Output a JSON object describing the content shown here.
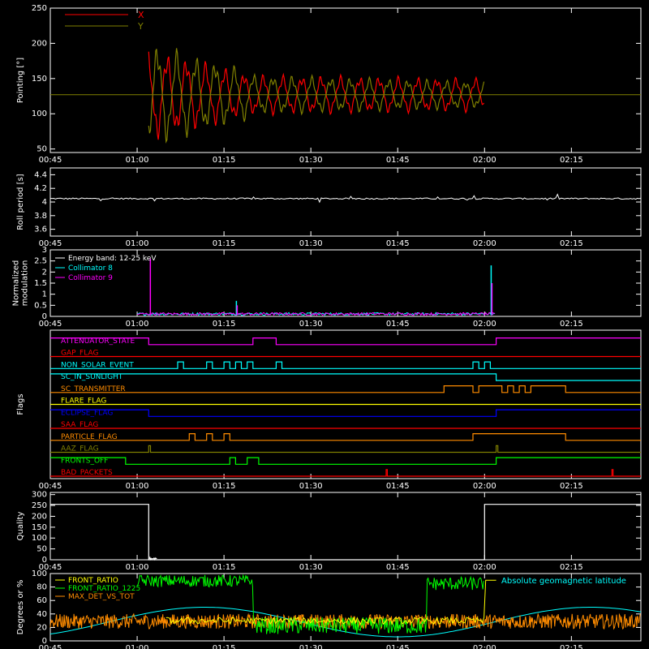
{
  "time_ticks": [
    "00:45",
    "01:00",
    "01:15",
    "01:30",
    "01:45",
    "02:00",
    "02:15"
  ],
  "colors": {
    "background": "#000000",
    "axes": "#ffffff",
    "red": "#ff0000",
    "olive": "#808000",
    "cyan": "#00ffff",
    "magenta": "#ff00ff",
    "green": "#00ff00",
    "yellow": "#ffff00",
    "orange": "#ff8c00",
    "blue": "#0000ff"
  },
  "chart_data": [
    {
      "type": "line",
      "ylabel": "Pointing [°]",
      "yticks": [
        50,
        100,
        150,
        200,
        250
      ],
      "ylim": [
        45,
        250
      ],
      "xlim": [
        "00:45",
        "02:27"
      ],
      "series": [
        {
          "name": "X",
          "color": "#ff0000",
          "center": 127,
          "segments": [
            {
              "t0": "01:02",
              "t1": "01:20",
              "amp_start": 70,
              "amp_end": 30
            },
            {
              "t0": "01:20",
              "t1": "02:00",
              "amp_start": 30,
              "amp_end": 25
            }
          ]
        },
        {
          "name": "Y",
          "color": "#808000",
          "center": 127,
          "segments": [
            {
              "t0": "01:02",
              "t1": "01:20",
              "amp_start": 78,
              "amp_end": 35
            },
            {
              "t0": "01:20",
              "t1": "02:00",
              "amp_start": 30,
              "amp_end": 20
            }
          ]
        }
      ]
    },
    {
      "type": "line",
      "ylabel": "Roll period [s]",
      "yticks": [
        3.6,
        3.8,
        4.0,
        4.2,
        4.4
      ],
      "ylim": [
        3.5,
        4.5
      ],
      "baseline": 4.05,
      "series": [
        {
          "color": "#ffffff",
          "values_note": "flat ~4.05"
        }
      ]
    },
    {
      "type": "line",
      "ylabel": "Normalized modulation",
      "yticks": [
        0.0,
        0.5,
        1.0,
        1.5,
        2.0,
        2.5,
        3.0
      ],
      "ylim": [
        0,
        3.0
      ],
      "series": [
        {
          "name": "Energy band: 12-25 keV",
          "color": "#ffffff"
        },
        {
          "name": "Collimator 8",
          "color": "#00ffff",
          "spikes": [
            [
              "01:17",
              0.7
            ],
            [
              "02:01",
              2.3
            ]
          ]
        },
        {
          "name": "Collimator 9",
          "color": "#ff00ff",
          "spikes": [
            [
              "01:02",
              2.6
            ],
            [
              "01:17",
              0.5
            ],
            [
              "02:01",
              1.5
            ]
          ]
        }
      ]
    },
    {
      "type": "step",
      "ylabel": "Flags",
      "flags": [
        {
          "name": "ATTENUATOR_STATE",
          "color": "#ff00ff",
          "transitions": [
            [
              "00:45",
              1
            ],
            [
              "01:02",
              0
            ],
            [
              "01:20",
              1
            ],
            [
              "01:24",
              0
            ],
            [
              "02:02",
              1
            ],
            [
              "02:27",
              1
            ]
          ]
        },
        {
          "name": "GAP_FLAG",
          "color": "#ff0000",
          "transitions": [
            [
              "00:45",
              0
            ],
            [
              "02:27",
              0
            ]
          ]
        },
        {
          "name": "NON_SOLAR_EVENT",
          "color": "#00ffff",
          "transitions": [
            [
              "00:45",
              0
            ],
            [
              "01:07",
              1
            ],
            [
              "01:08",
              0
            ],
            [
              "01:12",
              1
            ],
            [
              "01:13",
              0
            ],
            [
              "01:15",
              1
            ],
            [
              "01:16",
              0
            ],
            [
              "01:17",
              1
            ],
            [
              "01:18",
              0
            ],
            [
              "01:19",
              1
            ],
            [
              "01:20",
              0
            ],
            [
              "01:24",
              1
            ],
            [
              "01:25",
              0
            ],
            [
              "01:58",
              1
            ],
            [
              "01:59",
              0
            ],
            [
              "02:00",
              1
            ],
            [
              "02:01",
              0
            ],
            [
              "02:27",
              0
            ]
          ]
        },
        {
          "name": "SC_IN_SUNLIGHT",
          "color": "#00ffff",
          "transitions": [
            [
              "00:45",
              1
            ],
            [
              "02:02",
              0
            ],
            [
              "02:27",
              0
            ]
          ]
        },
        {
          "name": "SC_TRANSMITTER",
          "color": "#ff8c00",
          "transitions": [
            [
              "00:45",
              0
            ],
            [
              "01:53",
              1
            ],
            [
              "01:58",
              0
            ],
            [
              "01:59",
              1
            ],
            [
              "02:03",
              0
            ],
            [
              "02:04",
              1
            ],
            [
              "02:05",
              0
            ],
            [
              "02:06",
              1
            ],
            [
              "02:07",
              0
            ],
            [
              "02:08",
              1
            ],
            [
              "02:14",
              0
            ],
            [
              "02:27",
              0
            ]
          ]
        },
        {
          "name": "FLARE_FLAG",
          "color": "#ffff00",
          "transitions": [
            [
              "00:45",
              0
            ],
            [
              "02:27",
              0
            ]
          ]
        },
        {
          "name": "ECLIPSE_FLAG",
          "color": "#0000ff",
          "transitions": [
            [
              "00:45",
              1
            ],
            [
              "01:02",
              0
            ],
            [
              "02:02",
              1
            ],
            [
              "02:27",
              1
            ]
          ]
        },
        {
          "name": "SAA_FLAG",
          "color": "#ff0000",
          "transitions": [
            [
              "00:45",
              0
            ],
            [
              "02:27",
              0
            ]
          ]
        },
        {
          "name": "PARTICLE_FLAG",
          "color": "#ff8c00",
          "transitions": [
            [
              "00:45",
              0
            ],
            [
              "01:09",
              1
            ],
            [
              "01:10",
              0
            ],
            [
              "01:12",
              1
            ],
            [
              "01:13",
              0
            ],
            [
              "01:15",
              1
            ],
            [
              "01:16",
              0
            ],
            [
              "01:58",
              1
            ],
            [
              "02:14",
              0
            ],
            [
              "02:27",
              0
            ]
          ]
        },
        {
          "name": "AAZ_FLAG",
          "color": "#808000",
          "transitions": [
            [
              "00:45",
              0
            ],
            [
              "01:02",
              1
            ],
            [
              "01:02.3",
              0
            ],
            [
              "02:02",
              1
            ],
            [
              "02:02.3",
              0
            ],
            [
              "02:27",
              0
            ]
          ]
        },
        {
          "name": "FRONTS_OFF",
          "color": "#00ff00",
          "transitions": [
            [
              "00:45",
              1
            ],
            [
              "00:58",
              0
            ],
            [
              "01:16",
              1
            ],
            [
              "01:17",
              0
            ],
            [
              "01:19",
              1
            ],
            [
              "01:21",
              0
            ],
            [
              "02:02",
              1
            ],
            [
              "02:27",
              1
            ]
          ]
        },
        {
          "name": "BAD_PACKETS",
          "color": "#ff0000",
          "transitions": [
            [
              "00:45",
              0
            ],
            [
              "01:43",
              1
            ],
            [
              "01:43.2",
              0
            ],
            [
              "02:22",
              1
            ],
            [
              "02:22.2",
              0
            ],
            [
              "02:27",
              0
            ]
          ]
        }
      ]
    },
    {
      "type": "line",
      "ylabel": "Quality",
      "yticks": [
        0,
        50,
        100,
        150,
        200,
        250,
        300
      ],
      "ylim": [
        0,
        310
      ],
      "series": [
        {
          "color": "#ffffff",
          "transitions": [
            [
              "00:45",
              255
            ],
            [
              "01:02",
              255
            ],
            [
              "01:02",
              0
            ],
            [
              "02:00",
              0
            ],
            [
              "02:00",
              255
            ],
            [
              "02:27",
              255
            ]
          ]
        }
      ]
    },
    {
      "type": "line",
      "ylabel": "Degrees or %",
      "yticks": [
        0,
        20,
        40,
        60,
        80,
        100
      ],
      "ylim": [
        0,
        100
      ],
      "series": [
        {
          "name": "FRONT_RATIO",
          "color": "#ffff00"
        },
        {
          "name": "FRONT_RATIO_1225",
          "color": "#00ff00"
        },
        {
          "name": "MAX_DET_VS_TOT",
          "color": "#ff8c00"
        },
        {
          "name": "Absolute geomagnetic latitude",
          "color": "#00ffff"
        }
      ]
    }
  ]
}
